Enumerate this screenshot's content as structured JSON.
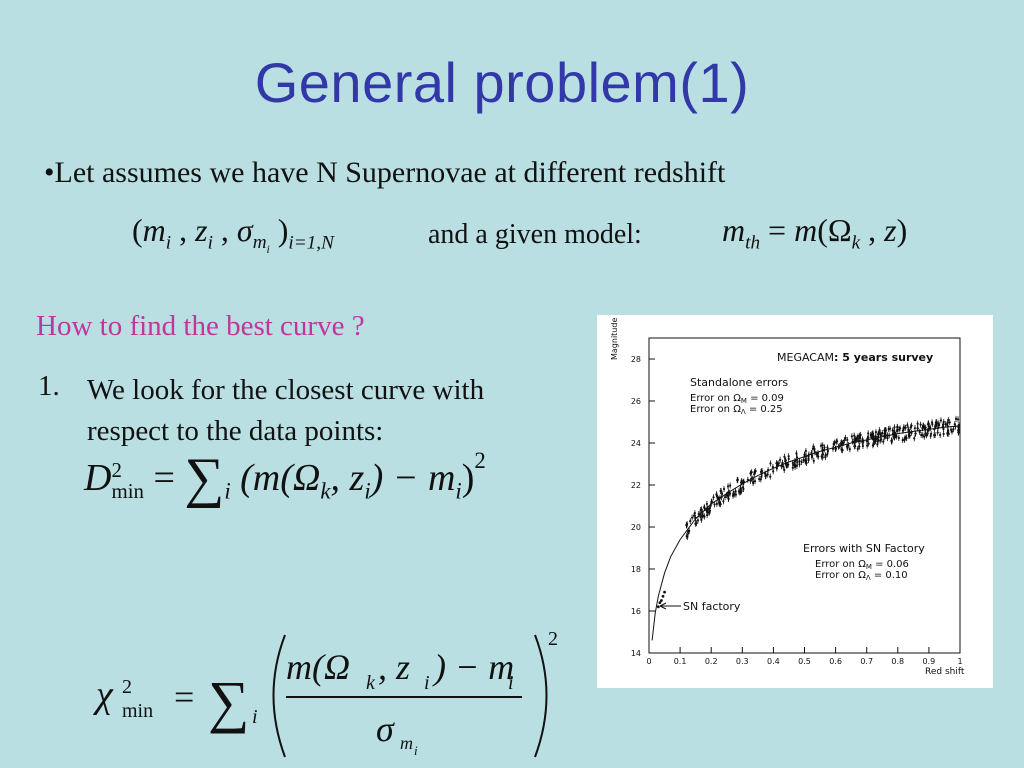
{
  "slide": {
    "title": "General problem(1)",
    "bullet": "•Let assumes we have N Supernovae at different redshift",
    "model_text": "and a given model:",
    "question": "How to find the best curve ?",
    "step_number": "1.",
    "step_line1": "We look for the closest curve with",
    "step_line2": "respect to the data points:"
  },
  "equations": {
    "tuple": {
      "open": "(",
      "m": "m",
      "i": "i",
      "z": "z",
      "sigma": "σ",
      "close": ")",
      "range": "i=1,N"
    },
    "model": {
      "mth": "m",
      "th": "th",
      "eq": "=",
      "m": "m",
      "omega": "Ω",
      "k": "k",
      "z": "z"
    },
    "dmin": {
      "D": "D",
      "sup2": "2",
      "min": "min",
      "eq": "=",
      "sum": "∑",
      "sub_i": "i",
      "body": "(m(Ω",
      "k": "k",
      "mid": ", z",
      "i": "i",
      "tail": ") − m",
      "mi": "i",
      "close": ")",
      "sq": "2"
    },
    "chimin": {
      "chi": "χ",
      "sup2": "2",
      "min": "min",
      "eq": "=",
      "sum": "∑",
      "sub_i": "i",
      "num": "m(Ω",
      "k": "k",
      "num2": ", z",
      "i": "i",
      "num3": ") − m",
      "mi": "i",
      "den": "σ",
      "den_sub": "m",
      "den_sub2": "i",
      "sq": "2"
    }
  },
  "chart_data": {
    "type": "scatter",
    "ylabel": "Magnitude",
    "xlabel": "Red shift",
    "xlim": [
      0,
      1
    ],
    "ylim": [
      14,
      29
    ],
    "xticks": [
      "0",
      "0.1",
      "0.2",
      "0.3",
      "0.4",
      "0.5",
      "0.6",
      "0.7",
      "0.8",
      "0.9",
      "1"
    ],
    "yticks": [
      "14",
      "16",
      "18",
      "20",
      "22",
      "24",
      "26",
      "28"
    ],
    "annotations": {
      "survey_bold": "MEGACAM",
      "survey_rest": ": 5 years survey",
      "standalone_title": "Standalone errors",
      "standalone_line1": "Error on Ω",
      "standalone_sub1": "M",
      "standalone_val1": " = 0.09",
      "standalone_line2": "Error on Ω",
      "standalone_sub2": "Λ",
      "standalone_val2": " = 0.25",
      "snf_title": "Errors with SN Factory",
      "snf_line1": "Error on Ω",
      "snf_sub1": "M",
      "snf_val1": " = 0.06",
      "snf_line2": "Error on Ω",
      "snf_sub2": "Λ",
      "snf_val2": " = 0.10",
      "arrow_label": "SN factory"
    },
    "curve": {
      "x": [
        0.01,
        0.02,
        0.03,
        0.05,
        0.07,
        0.1,
        0.15,
        0.2,
        0.25,
        0.3,
        0.35,
        0.4,
        0.45,
        0.5,
        0.55,
        0.6,
        0.65,
        0.7,
        0.75,
        0.8,
        0.85,
        0.9,
        0.95,
        1.0
      ],
      "y": [
        14.6,
        15.9,
        16.7,
        17.8,
        18.6,
        19.4,
        20.4,
        21.1,
        21.6,
        22.05,
        22.45,
        22.8,
        23.1,
        23.35,
        23.6,
        23.8,
        24.0,
        24.15,
        24.3,
        24.45,
        24.55,
        24.65,
        24.75,
        24.82
      ]
    },
    "sn_factory_points": {
      "x": [
        0.03,
        0.035,
        0.04,
        0.045,
        0.05
      ],
      "y": [
        16.2,
        16.4,
        16.5,
        16.7,
        16.9
      ]
    },
    "survey_points_range": {
      "x_start": 0.12,
      "x_end": 1.0,
      "count": 420
    }
  }
}
